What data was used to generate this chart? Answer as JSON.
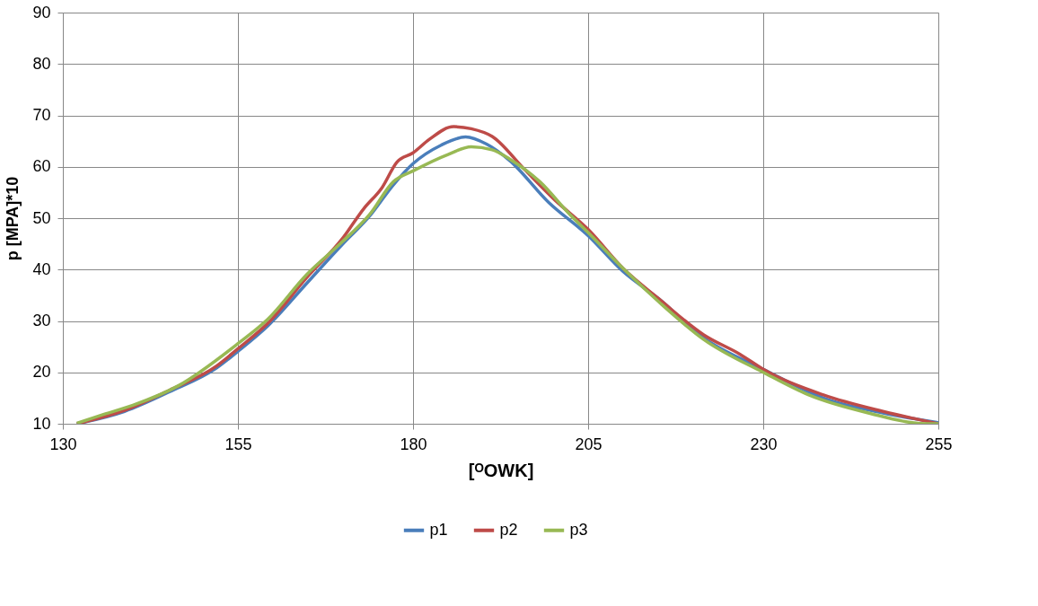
{
  "chart_data": {
    "type": "line",
    "xlabel": "[ᴼOWK]",
    "ylabel": "p [MPA]*10",
    "xlim": [
      130,
      255
    ],
    "xticks": [
      130,
      155,
      180,
      205,
      230,
      255
    ],
    "ylim": [
      10,
      90
    ],
    "yticks": [
      10,
      20,
      30,
      40,
      50,
      60,
      70,
      80,
      90
    ],
    "grid": true,
    "legend": "bottom",
    "marker": "none",
    "line_style": "solid",
    "series": [
      {
        "name": "p1",
        "color": "#4a7ebb",
        "x": [
          132,
          138.8,
          145.2,
          152,
          155,
          159.3,
          164.8,
          169.9,
          173.8,
          177.2,
          180,
          184,
          187.5,
          190.5,
          193.8,
          199.4,
          205,
          210,
          215.1,
          221.5,
          230,
          238.6,
          247.1,
          255
        ],
        "values": [
          10,
          12.4,
          16.2,
          20.9,
          24.1,
          29.1,
          37.3,
          44.9,
          50.4,
          56.5,
          60.6,
          64.2,
          65.8,
          64.4,
          61.2,
          53,
          46.6,
          39.6,
          34.3,
          26.7,
          20.6,
          15,
          12.1,
          10.2
        ]
      },
      {
        "name": "p2",
        "color": "#be4b48",
        "x": [
          132,
          138.8,
          145.2,
          152,
          155,
          159.3,
          164.8,
          169.9,
          173,
          175.6,
          177.7,
          180,
          182.3,
          185.8,
          188.3,
          191.3,
          195.9,
          200.2,
          205,
          210,
          215.1,
          221.5,
          226.7,
          230,
          238.6,
          247.1,
          255
        ],
        "values": [
          10,
          12.6,
          16.5,
          21.3,
          24.6,
          29.6,
          38.4,
          46,
          51.9,
          56,
          60.9,
          62.7,
          65.3,
          67.8,
          67.4,
          65.9,
          59.5,
          53.6,
          47.8,
          40.2,
          34.3,
          27.3,
          23.5,
          20.6,
          15.6,
          12.4,
          10
        ]
      },
      {
        "name": "p3",
        "color": "#98b954",
        "x": [
          132,
          135.8,
          140,
          146.5,
          155,
          159.3,
          164.8,
          169.9,
          173.8,
          177.2,
          180,
          185,
          188.3,
          191.3,
          193.8,
          198.1,
          202.4,
          205,
          210,
          215.1,
          221.5,
          230,
          236.5,
          245,
          253.5,
          255
        ],
        "values": [
          10.1,
          11.8,
          13.6,
          17.4,
          25.6,
          30.4,
          39,
          45.4,
          50.7,
          57.1,
          59.2,
          62.4,
          63.9,
          63.3,
          61.5,
          57.1,
          50.7,
          47.2,
          40.2,
          33.7,
          26.4,
          20,
          15.6,
          12.1,
          10,
          10
        ]
      }
    ]
  }
}
